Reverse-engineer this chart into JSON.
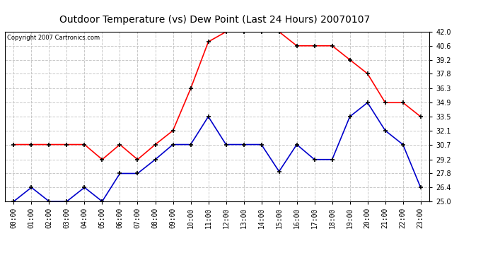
{
  "title": "Outdoor Temperature (vs) Dew Point (Last 24 Hours) 20070107",
  "copyright": "Copyright 2007 Cartronics.com",
  "hours": [
    "00:00",
    "01:00",
    "02:00",
    "03:00",
    "04:00",
    "05:00",
    "06:00",
    "07:00",
    "08:00",
    "09:00",
    "10:00",
    "11:00",
    "12:00",
    "13:00",
    "14:00",
    "15:00",
    "16:00",
    "17:00",
    "18:00",
    "19:00",
    "20:00",
    "21:00",
    "22:00",
    "23:00"
  ],
  "temp": [
    30.7,
    30.7,
    30.7,
    30.7,
    30.7,
    29.2,
    30.7,
    29.2,
    30.7,
    32.1,
    36.3,
    41.0,
    42.0,
    42.0,
    42.0,
    42.0,
    40.6,
    40.6,
    40.6,
    39.2,
    37.8,
    34.9,
    34.9,
    33.5
  ],
  "dewpoint": [
    25.0,
    26.4,
    25.0,
    25.0,
    26.4,
    25.0,
    27.8,
    27.8,
    29.2,
    30.7,
    30.7,
    33.5,
    30.7,
    30.7,
    30.7,
    28.0,
    30.7,
    29.2,
    29.2,
    33.5,
    34.9,
    32.1,
    30.7,
    26.4
  ],
  "ylim": [
    25.0,
    42.0
  ],
  "yticks": [
    25.0,
    26.4,
    27.8,
    29.2,
    30.7,
    32.1,
    33.5,
    34.9,
    36.3,
    37.8,
    39.2,
    40.6,
    42.0
  ],
  "temp_color": "#ff0000",
  "dew_color": "#0000cc",
  "bg_color": "#ffffff",
  "grid_color": "#c8c8c8",
  "title_fontsize": 10,
  "tick_fontsize": 7,
  "copyright_fontsize": 6
}
